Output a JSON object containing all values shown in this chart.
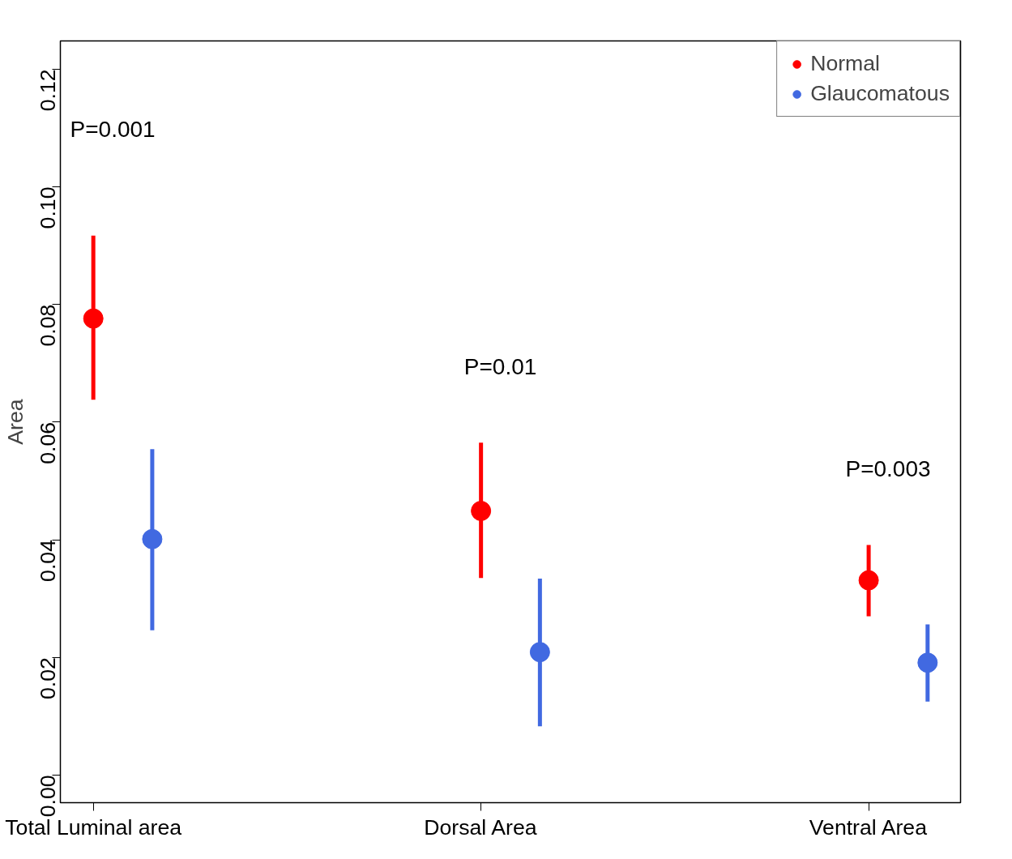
{
  "chart_data": {
    "type": "scatter",
    "ylabel": "Area",
    "categories": [
      "Total Luminal area",
      "Dorsal Area",
      "Ventral Area"
    ],
    "series": [
      {
        "name": "Normal",
        "color": "#ff0000",
        "values": [
          0.0776,
          0.0449,
          0.0331
        ],
        "errors": [
          [
            0.0638,
            0.0917
          ],
          [
            0.0335,
            0.0565
          ],
          [
            0.027,
            0.0391
          ]
        ]
      },
      {
        "name": "Glaucomatous",
        "color": "#4169e1",
        "values": [
          0.0401,
          0.0209,
          0.0191
        ],
        "errors": [
          [
            0.0246,
            0.0554
          ],
          [
            0.0083,
            0.0334
          ],
          [
            0.0125,
            0.0256
          ]
        ]
      }
    ],
    "ylim": [
      -0.0047,
      0.1248
    ],
    "yticks": [
      {
        "value": 0,
        "label": "0.00"
      },
      {
        "value": 0.02,
        "label": "0.02"
      },
      {
        "value": 0.04,
        "label": "0.04"
      },
      {
        "value": 0.06,
        "label": "0.06"
      },
      {
        "value": 0.08,
        "label": "0.08"
      },
      {
        "value": 0.1,
        "label": "0.10"
      },
      {
        "value": 0.12,
        "label": "0.12"
      }
    ],
    "annotations": [
      "P=0.001",
      "P=0.01",
      "P=0.003"
    ],
    "legend": "top right",
    "marker": "circle",
    "grid": false
  }
}
